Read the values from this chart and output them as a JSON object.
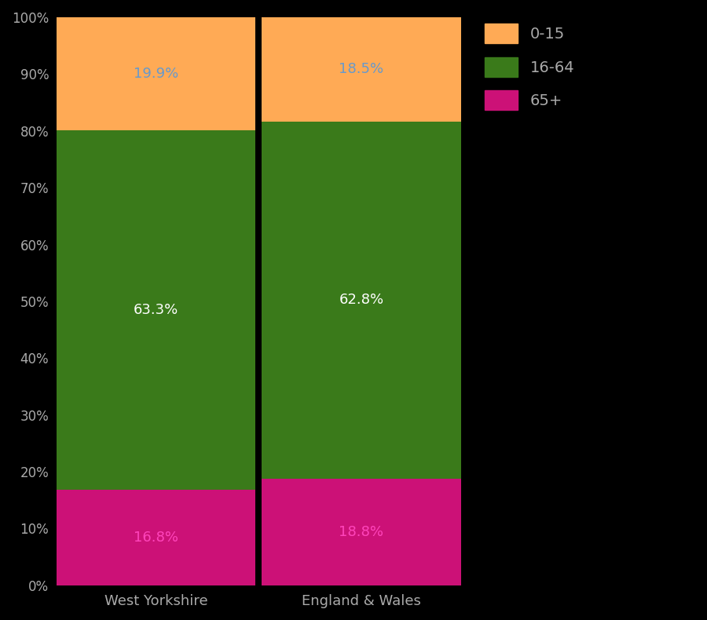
{
  "categories": [
    "West Yorkshire",
    "England & Wales"
  ],
  "age_groups": [
    "65+",
    "16-64",
    "0-15"
  ],
  "values": {
    "West Yorkshire": [
      16.8,
      63.3,
      19.9
    ],
    "England & Wales": [
      18.8,
      62.8,
      18.5
    ]
  },
  "colors": [
    "#CC1177",
    "#3A7A1A",
    "#FFAA55"
  ],
  "label_colors": [
    "#FF44BB",
    "#FFFFFF",
    "#6699CC"
  ],
  "background_color": "#000000",
  "text_color": "#AAAAAA",
  "bar_width": 0.97,
  "ylim": [
    0,
    100
  ],
  "ytick_labels": [
    "0%",
    "10%",
    "20%",
    "30%",
    "40%",
    "50%",
    "60%",
    "70%",
    "80%",
    "90%",
    "100%"
  ],
  "ytick_values": [
    0,
    10,
    20,
    30,
    40,
    50,
    60,
    70,
    80,
    90,
    100
  ],
  "legend_labels": [
    "0-15",
    "16-64",
    "65+"
  ],
  "legend_colors": [
    "#FFAA55",
    "#3A7A1A",
    "#CC1177"
  ],
  "figsize": [
    9.0,
    7.9
  ],
  "dpi": 100,
  "label_fontsize": 13,
  "tick_fontsize": 12,
  "xtick_fontsize": 13
}
